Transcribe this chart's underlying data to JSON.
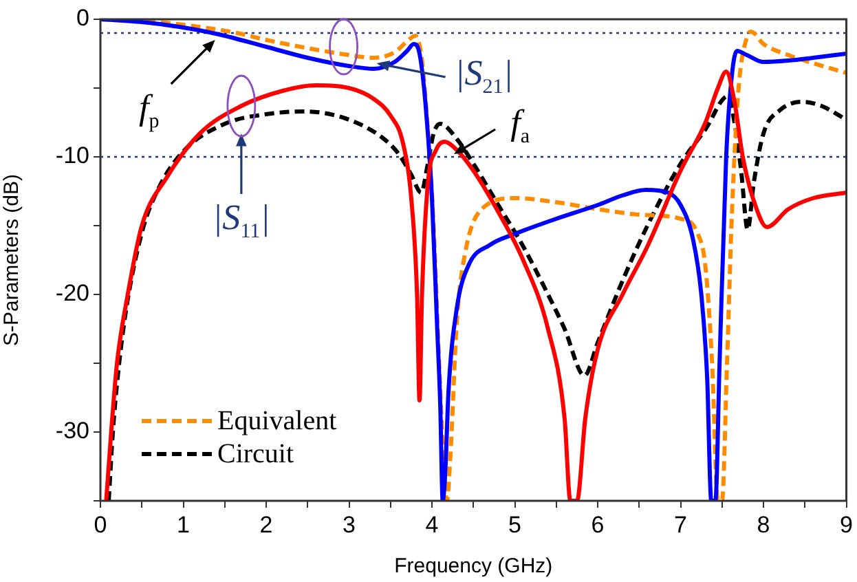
{
  "chart_data": {
    "type": "line",
    "xlabel": "Frequency (GHz)",
    "ylabel": "S-Parameters (dB)",
    "xlim": [
      0,
      9
    ],
    "xticks": [
      0,
      {
        "value": 0.5,
        "label": null
      },
      1,
      {
        "value": 1.5,
        "label": null
      },
      2,
      {
        "value": 2.5,
        "label": null
      },
      3,
      {
        "value": 3.5,
        "label": null
      },
      4,
      {
        "value": 4.5,
        "label": null
      },
      5,
      {
        "value": 5.5,
        "label": null
      },
      6,
      {
        "value": 6.5,
        "label": null
      },
      7,
      {
        "value": 7.5,
        "label": null
      },
      8,
      {
        "value": 8.5,
        "label": null
      },
      9
    ],
    "ylim": [
      -35,
      0
    ],
    "yticks": [
      {
        "value": -35,
        "label": null
      },
      -30,
      {
        "value": -25,
        "label": null
      },
      -20,
      {
        "value": -15,
        "label": null
      },
      -10,
      {
        "value": -5,
        "label": null
      },
      0
    ],
    "grid": false,
    "legend": "bottom left",
    "marker": "none",
    "series": [
      {
        "color": "#ff0000",
        "line_style": "solid",
        "x": [
          0.07,
          0.13,
          0.2,
          0.33,
          0.5,
          0.8,
          1.2,
          1.7,
          2.2,
          2.6,
          3.0,
          3.3,
          3.5,
          3.65,
          3.75,
          3.82,
          3.85,
          3.88,
          3.95,
          4.05,
          4.15,
          4.3,
          4.5,
          4.8,
          5.1,
          5.4,
          5.6,
          5.67,
          5.75,
          5.85,
          6.0,
          6.3,
          6.6,
          7.0,
          7.3,
          7.45,
          7.55,
          7.65,
          7.75,
          7.9,
          8.04,
          8.3,
          8.6,
          9.0
        ],
        "values": [
          -35,
          -30,
          -25,
          -20,
          -15,
          -11.5,
          -8.3,
          -6.3,
          -5.2,
          -4.8,
          -5.0,
          -5.8,
          -7,
          -9,
          -13,
          -20,
          -27.7,
          -20,
          -12,
          -9.5,
          -8.9,
          -9.5,
          -11,
          -14,
          -17.5,
          -22.5,
          -29,
          -35,
          -35,
          -29,
          -24,
          -20,
          -16.5,
          -11,
          -7.5,
          -5,
          -3.8,
          -6,
          -10,
          -13.5,
          -15.1,
          -13.8,
          -13,
          -12.6
        ]
      },
      {
        "color": "#0000ff",
        "line_style": "solid",
        "x": [
          0,
          0.5,
          1.0,
          1.43,
          2.0,
          2.5,
          3.0,
          3.3,
          3.55,
          3.7,
          3.78,
          3.85,
          3.92,
          4.0,
          4.06,
          4.1,
          4.13,
          4.16,
          4.2,
          4.3,
          4.44,
          4.7,
          5.0,
          5.5,
          6.0,
          6.3,
          6.58,
          6.85,
          7.0,
          7.15,
          7.25,
          7.32,
          7.37,
          7.42,
          7.47,
          7.55,
          7.62,
          7.68,
          7.8,
          8.0,
          8.3,
          8.6,
          9.0
        ],
        "values": [
          0,
          -0.2,
          -0.6,
          -1.1,
          -2.0,
          -2.8,
          -3.4,
          -3.6,
          -3.1,
          -2.3,
          -1.8,
          -2.5,
          -6,
          -13,
          -22,
          -28,
          -35,
          -33,
          -27,
          -21,
          -17.9,
          -16.4,
          -15.6,
          -14.5,
          -13.5,
          -12.8,
          -12.4,
          -12.6,
          -13.5,
          -16,
          -20,
          -26,
          -35,
          -35,
          -25,
          -10,
          -4,
          -2.3,
          -2.6,
          -3.1,
          -3.0,
          -2.8,
          -2.5
        ]
      },
      {
        "color": "#ff8c00",
        "line_style": "dashed",
        "x": [
          0,
          0.5,
          1.0,
          1.65,
          2.0,
          2.5,
          3.0,
          3.3,
          3.55,
          3.7,
          3.8,
          3.88,
          3.95,
          4.02,
          4.08,
          4.14,
          4.18,
          4.22,
          4.3,
          4.4,
          4.6,
          5.0,
          5.5,
          6.0,
          6.5,
          7.0,
          7.2,
          7.3,
          7.38,
          7.45,
          7.5,
          7.56,
          7.62,
          7.7,
          7.8,
          7.85,
          8.0,
          8.3,
          8.6,
          9.0
        ],
        "values": [
          0,
          -0.1,
          -0.4,
          -1.0,
          -1.5,
          -2.1,
          -2.6,
          -2.8,
          -2.4,
          -1.6,
          -1.2,
          -3,
          -8,
          -15,
          -24,
          -32,
          -35,
          -32,
          -22,
          -17,
          -13.8,
          -13,
          -13.3,
          -13.8,
          -14.2,
          -14.5,
          -15.5,
          -18,
          -25,
          -35,
          -35,
          -25,
          -14,
          -5,
          -1.3,
          -0.9,
          -1.8,
          -2.6,
          -3.2,
          -3.9
        ],
        "name": "Equivalent"
      },
      {
        "color": "#000000",
        "line_style": "dashed",
        "x": [
          0.1,
          0.15,
          0.2,
          0.3,
          0.5,
          0.7,
          1.0,
          1.5,
          2.0,
          2.47,
          3.0,
          3.4,
          3.6,
          3.75,
          3.87,
          3.95,
          4.02,
          4.1,
          4.3,
          4.5,
          4.8,
          5.1,
          5.4,
          5.6,
          5.84,
          6.0,
          6.3,
          6.6,
          7.0,
          7.3,
          7.57,
          7.65,
          7.73,
          7.81,
          7.88,
          8.0,
          8.2,
          8.47,
          8.7,
          9.0
        ],
        "values": [
          -35,
          -30,
          -26.5,
          -21.5,
          -15.5,
          -12.3,
          -9.6,
          -7.6,
          -6.9,
          -6.7,
          -7.3,
          -8.6,
          -9.8,
          -11.3,
          -12.6,
          -10.5,
          -8.3,
          -7.6,
          -8.7,
          -10.5,
          -13.5,
          -16.5,
          -20,
          -22.5,
          -25.9,
          -23.5,
          -19,
          -15,
          -10.5,
          -8,
          -5.6,
          -7.5,
          -11,
          -15.3,
          -12,
          -8.3,
          -6.6,
          -6.0,
          -6.3,
          -7.3
        ],
        "name": "Circuit"
      }
    ],
    "ref_lines": [
      {
        "axis": "y",
        "value": -1,
        "color": "#1f3a7a",
        "line_style": "dotted"
      },
      {
        "axis": "y",
        "value": -10,
        "color": "#1f3a7a",
        "line_style": "dotted"
      }
    ],
    "annotations": [
      {
        "text": "f$_{p}$",
        "x": 1.45,
        "y": -1.1
      },
      {
        "text": "|S$_{21}$|",
        "x": 3.1,
        "y": -2.8
      },
      {
        "text": "|S$_{11}$|",
        "x": 1.7,
        "y": -6.3
      },
      {
        "text": "f$_{a}$",
        "x": 4.2,
        "y": -9.2
      }
    ]
  }
}
